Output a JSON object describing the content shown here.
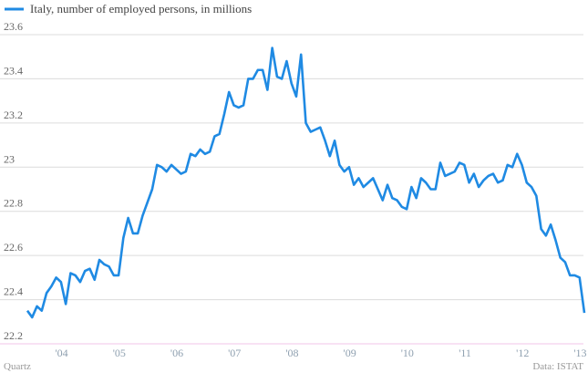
{
  "chart_data": {
    "type": "line",
    "credit": "Quartz",
    "source": "Data: ISTAT",
    "legend": "top-left",
    "grid": true,
    "categories": [
      null,
      null,
      null,
      null,
      null,
      null,
      "'04",
      null,
      null,
      null,
      null,
      null,
      null,
      null,
      null,
      null,
      null,
      null,
      "'05",
      null,
      null,
      null,
      null,
      null,
      null,
      null,
      null,
      null,
      null,
      null,
      "'06",
      null,
      null,
      null,
      null,
      null,
      null,
      null,
      null,
      null,
      null,
      null,
      "'07",
      null,
      null,
      null,
      null,
      null,
      null,
      null,
      null,
      null,
      null,
      null,
      "'08",
      null,
      null,
      null,
      null,
      null,
      null,
      null,
      null,
      null,
      null,
      null,
      "'09",
      null,
      null,
      null,
      null,
      null,
      null,
      null,
      null,
      null,
      null,
      null,
      "'10",
      null,
      null,
      null,
      null,
      null,
      null,
      null,
      null,
      null,
      null,
      null,
      "'11",
      null,
      null,
      null,
      null,
      null,
      null,
      null,
      null,
      null,
      null,
      null,
      "'12",
      null,
      null,
      null,
      null,
      null,
      null,
      null,
      null,
      null,
      null,
      null,
      "'13",
      null,
      null
    ],
    "series": [
      {
        "name": "Italy, number of employed persons, in millions",
        "color": "#1f8ae3",
        "values": [
          22.35,
          22.32,
          22.37,
          22.35,
          22.43,
          22.46,
          22.5,
          22.48,
          22.38,
          22.52,
          22.51,
          22.48,
          22.53,
          22.54,
          22.49,
          22.58,
          22.56,
          22.55,
          22.51,
          22.51,
          22.68,
          22.77,
          22.7,
          22.7,
          22.78,
          22.84,
          22.9,
          23.01,
          23.0,
          22.98,
          23.01,
          22.99,
          22.97,
          22.98,
          23.06,
          23.05,
          23.08,
          23.06,
          23.07,
          23.14,
          23.15,
          23.24,
          23.34,
          23.28,
          23.27,
          23.28,
          23.4,
          23.4,
          23.44,
          23.44,
          23.35,
          23.54,
          23.41,
          23.4,
          23.48,
          23.38,
          23.32,
          23.51,
          23.2,
          23.16,
          23.17,
          23.18,
          23.12,
          23.05,
          23.12,
          23.01,
          22.98,
          23.0,
          22.92,
          22.95,
          22.91,
          22.93,
          22.95,
          22.9,
          22.85,
          22.92,
          22.86,
          22.85,
          22.82,
          22.81,
          22.91,
          22.86,
          22.95,
          22.93,
          22.9,
          22.9,
          23.02,
          22.96,
          22.97,
          22.98,
          23.02,
          23.01,
          22.93,
          22.97,
          22.91,
          22.94,
          22.96,
          22.97,
          22.93,
          22.94,
          23.01,
          23.0,
          23.06,
          23.01,
          22.93,
          22.91,
          22.87,
          22.72,
          22.69,
          22.74,
          22.67,
          22.59,
          22.57,
          22.51,
          22.51,
          22.5,
          22.34
        ]
      }
    ],
    "ylim": [
      22.2,
      23.6
    ],
    "yticks": [
      22.2,
      22.4,
      22.6,
      22.8,
      23,
      23.2,
      23.4,
      23.6
    ]
  }
}
